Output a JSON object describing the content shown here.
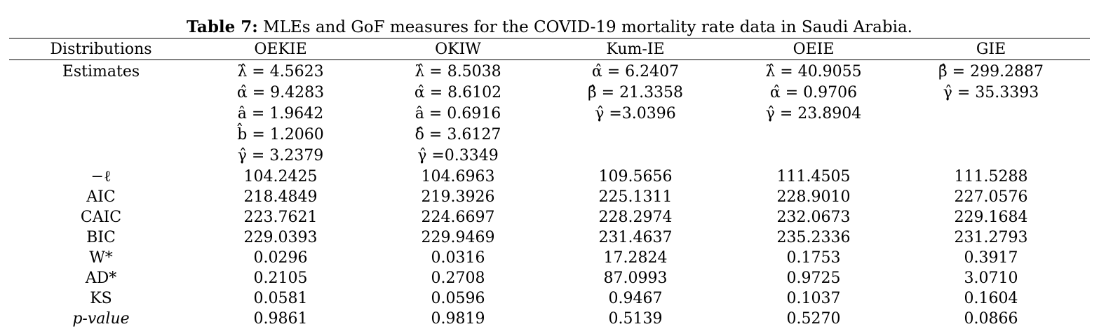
{
  "caption": {
    "label": "Table 7:",
    "text": " MLEs and GoF measures for the COVID-19 mortality rate data in Saudi Arabia."
  },
  "table": {
    "header": [
      "Distributions",
      "OEKIE",
      "OKIW",
      "Kum-IE",
      "OEIE",
      "GIE"
    ],
    "estimates_label": "Estimates",
    "estimates": [
      [
        "λ̂ = 4.5623",
        "α̂ = 9.4283",
        "â = 1.9642",
        "b̂ = 1.2060",
        "γ̂ = 3.2379"
      ],
      [
        "λ̂ = 8.5038",
        "α̂ = 8.6102",
        "â = 0.6916",
        "δ̂ = 3.6127",
        "γ̂ =0.3349"
      ],
      [
        "α̂ = 6.2407",
        "β̂ = 21.3358",
        "γ̂ =3.0396"
      ],
      [
        "λ̂ = 40.9055",
        "α̂ = 0.9706",
        "γ̂ = 23.8904"
      ],
      [
        "β̂ = 299.2887",
        "γ̂ = 35.3393"
      ]
    ],
    "measures": [
      {
        "label": "−ℓ",
        "values": [
          "104.2425",
          "104.6963",
          "109.5656",
          "111.4505",
          "111.5288"
        ]
      },
      {
        "label": "AIC",
        "values": [
          "218.4849",
          "219.3926",
          "225.1311",
          "228.9010",
          "227.0576"
        ]
      },
      {
        "label": "CAIC",
        "values": [
          "223.7621",
          "224.6697",
          "228.2974",
          "232.0673",
          "229.1684"
        ]
      },
      {
        "label": "BIC",
        "values": [
          "229.0393",
          "229.9469",
          "231.4637",
          "235.2336",
          "231.2793"
        ]
      },
      {
        "label": "W*",
        "values": [
          "0.0296",
          "0.0316",
          "17.2824",
          "0.1753",
          "0.3917"
        ]
      },
      {
        "label": "AD*",
        "values": [
          "0.2105",
          "0.2708",
          "87.0993",
          "0.9725",
          "3.0710"
        ]
      },
      {
        "label": "KS",
        "values": [
          "0.0581",
          "0.0596",
          "0.9467",
          "0.1037",
          "0.1604"
        ]
      },
      {
        "label": "p-value",
        "values": [
          "0.9861",
          "0.9819",
          "0.5139",
          "0.5270",
          "0.0866"
        ]
      }
    ]
  }
}
